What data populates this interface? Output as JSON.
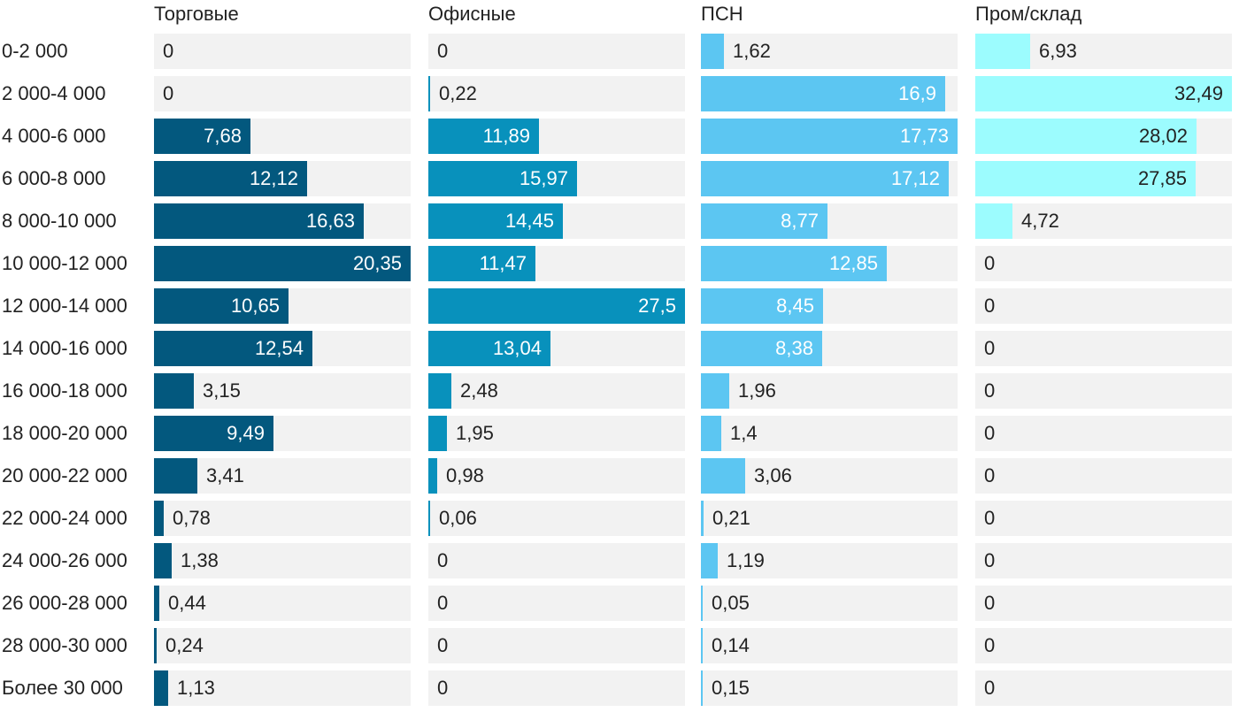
{
  "chart_data": {
    "type": "bar",
    "orientation": "horizontal",
    "layout": "small-multiples",
    "categories": [
      "0-2 000",
      "2 000-4 000",
      "4 000-6 000",
      "6 000-8 000",
      "8 000-10 000",
      "10 000-12 000",
      "12 000-14 000",
      "14 000-16 000",
      "16 000-18 000",
      "18 000-20 000",
      "20 000-22 000",
      "22 000-24 000",
      "24 000-26 000",
      "26 000-28 000",
      "28 000-30 000",
      "Более 30 000"
    ],
    "series": [
      {
        "name": "Торговые",
        "color": "#03587e",
        "max": 20.35,
        "values": [
          0,
          0,
          7.68,
          12.12,
          16.63,
          20.35,
          10.65,
          12.54,
          3.15,
          9.49,
          3.41,
          0.78,
          1.38,
          0.44,
          0.24,
          1.13
        ],
        "labels": [
          "0",
          "0",
          "7,68",
          "12,12",
          "16,63",
          "20,35",
          "10,65",
          "12,54",
          "3,15",
          "9,49",
          "3,41",
          "0,78",
          "1,38",
          "0,44",
          "0,24",
          "1,13"
        ]
      },
      {
        "name": "Офисные",
        "color": "#0891bc",
        "max": 27.5,
        "values": [
          0,
          0.22,
          11.89,
          15.97,
          14.45,
          11.47,
          27.5,
          13.04,
          2.48,
          1.95,
          0.98,
          0.06,
          0,
          0,
          0,
          0
        ],
        "labels": [
          "0",
          "0,22",
          "11,89",
          "15,97",
          "14,45",
          "11,47",
          "27,5",
          "13,04",
          "2,48",
          "1,95",
          "0,98",
          "0,06",
          "0",
          "0",
          "0",
          "0"
        ]
      },
      {
        "name": "ПСН",
        "color": "#5cc6f2",
        "max": 17.73,
        "values": [
          1.62,
          16.9,
          17.73,
          17.12,
          8.77,
          12.85,
          8.45,
          8.38,
          1.96,
          1.4,
          3.06,
          0.21,
          1.19,
          0.05,
          0.14,
          0.15
        ],
        "labels": [
          "1,62",
          "16,9",
          "17,73",
          "17,12",
          "8,77",
          "12,85",
          "8,45",
          "8,38",
          "1,96",
          "1,4",
          "3,06",
          "0,21",
          "1,19",
          "0,05",
          "0,14",
          "0,15"
        ]
      },
      {
        "name": "Пром/склад",
        "color": "#9cfcfe",
        "max": 32.49,
        "values": [
          6.93,
          32.49,
          28.02,
          27.85,
          4.72,
          0,
          0,
          0,
          0,
          0,
          0,
          0,
          0,
          0,
          0,
          0
        ],
        "labels": [
          "6,93",
          "32,49",
          "28,02",
          "27,85",
          "4,72",
          "0",
          "0",
          "0",
          "0",
          "0",
          "0",
          "0",
          "0",
          "0",
          "0",
          "0"
        ]
      }
    ],
    "title": "",
    "xlabel": "",
    "ylabel": "",
    "grid": false,
    "legend": "none"
  }
}
